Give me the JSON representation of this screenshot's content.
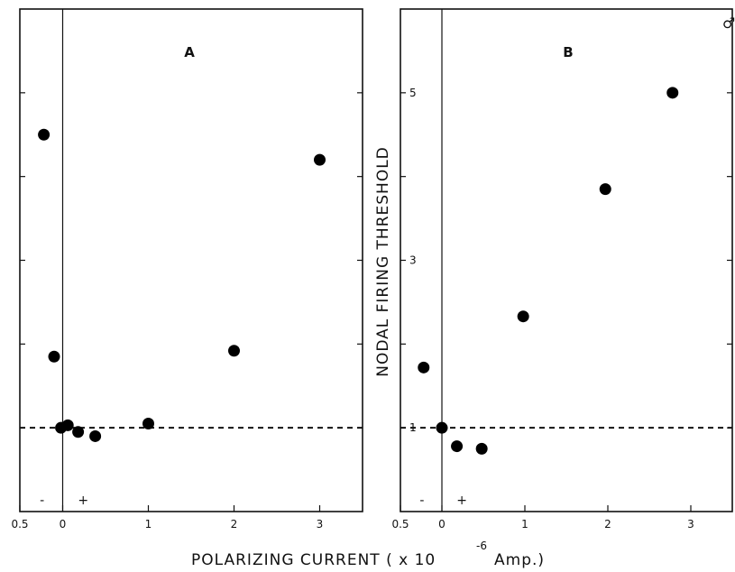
{
  "figure": {
    "corner_mark": "♂",
    "x_axis_title": "POLARIZING   CURRENT ( x 10",
    "x_axis_exponent": "-6",
    "x_axis_unit": "Amp.)",
    "y_axis_title": "NODAL  FIRING  THRESHOLD"
  },
  "chart_data": [
    {
      "type": "scatter",
      "panel_label": "A",
      "xlabel": "POLARIZING CURRENT (x10^-6 Amp.)",
      "ylabel": "NODAL FIRING THRESHOLD",
      "xlim": [
        -0.5,
        3.5
      ],
      "ylim": [
        0,
        6
      ],
      "x_ticks": [
        -0.5,
        0,
        1,
        2,
        3
      ],
      "x_tick_labels": [
        "0.5",
        "0",
        "1",
        "2",
        "3"
      ],
      "y_ticks": [
        1,
        2,
        3,
        4,
        5
      ],
      "y_tick_labels": [
        "",
        "",
        "",
        "",
        ""
      ],
      "sign_labels": [
        "-",
        "+"
      ],
      "reference_line": {
        "y": 1,
        "style": "dashed"
      },
      "points": [
        {
          "x": -0.22,
          "y": 4.5
        },
        {
          "x": -0.1,
          "y": 1.85
        },
        {
          "x": -0.02,
          "y": 1.0
        },
        {
          "x": 0.06,
          "y": 1.03
        },
        {
          "x": 0.18,
          "y": 0.95
        },
        {
          "x": 0.38,
          "y": 0.9
        },
        {
          "x": 1.0,
          "y": 1.05
        },
        {
          "x": 2.0,
          "y": 1.92
        },
        {
          "x": 3.0,
          "y": 4.2
        }
      ]
    },
    {
      "type": "scatter",
      "panel_label": "B",
      "xlabel": "POLARIZING CURRENT (x10^-6 Amp.)",
      "ylabel": "NODAL FIRING THRESHOLD",
      "xlim": [
        -0.5,
        3.5
      ],
      "ylim": [
        0,
        6
      ],
      "x_ticks": [
        -0.5,
        0,
        1,
        2,
        3
      ],
      "x_tick_labels": [
        "0.5",
        "0",
        "1",
        "2",
        "3"
      ],
      "y_ticks": [
        1,
        2,
        3,
        4,
        5
      ],
      "y_tick_labels": [
        "1",
        "",
        "3",
        "",
        "5"
      ],
      "sign_labels": [
        "-",
        "+"
      ],
      "reference_line": {
        "y": 1,
        "style": "dashed"
      },
      "points": [
        {
          "x": -0.22,
          "y": 1.72
        },
        {
          "x": 0.0,
          "y": 1.0
        },
        {
          "x": 0.18,
          "y": 0.78
        },
        {
          "x": 0.48,
          "y": 0.75
        },
        {
          "x": 0.98,
          "y": 2.33
        },
        {
          "x": 1.97,
          "y": 3.85
        },
        {
          "x": 2.78,
          "y": 5.0
        }
      ]
    }
  ]
}
